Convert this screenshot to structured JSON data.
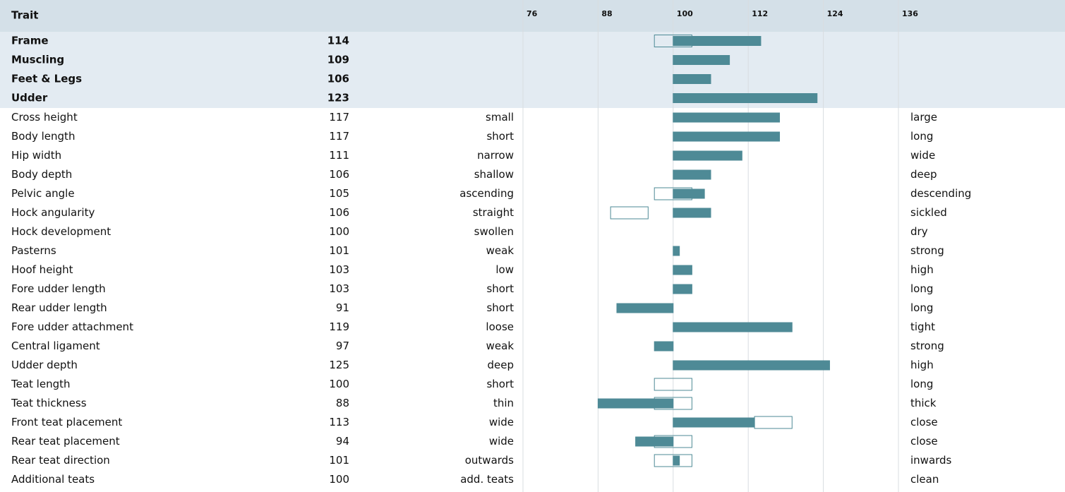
{
  "header": {
    "trait": "Trait"
  },
  "chart_data": {
    "type": "bar",
    "xlim": [
      76,
      136
    ],
    "xticks": [
      76,
      88,
      100,
      112,
      124,
      136
    ],
    "baseline": 100,
    "color": "#4e8a96",
    "grid": true,
    "summary": [
      {
        "name": "Frame",
        "value": 114,
        "optimum": [
          97,
          103
        ]
      },
      {
        "name": "Muscling",
        "value": 109
      },
      {
        "name": "Feet & Legs",
        "value": 106
      },
      {
        "name": "Udder",
        "value": 123
      }
    ],
    "traits": [
      {
        "name": "Cross height",
        "value": 117,
        "low": "small",
        "high": "large"
      },
      {
        "name": "Body length",
        "value": 117,
        "low": "short",
        "high": "long"
      },
      {
        "name": "Hip width",
        "value": 111,
        "low": "narrow",
        "high": "wide"
      },
      {
        "name": "Body depth",
        "value": 106,
        "low": "shallow",
        "high": "deep"
      },
      {
        "name": "Pelvic angle",
        "value": 105,
        "low": "ascending",
        "high": "descending",
        "optimum": [
          97,
          103
        ]
      },
      {
        "name": "Hock angularity",
        "value": 106,
        "low": "straight",
        "high": "sickled",
        "optimum": [
          90,
          96
        ]
      },
      {
        "name": "Hock development",
        "value": 100,
        "low": "swollen",
        "high": "dry"
      },
      {
        "name": "Pasterns",
        "value": 101,
        "low": "weak",
        "high": "strong"
      },
      {
        "name": "Hoof height",
        "value": 103,
        "low": "low",
        "high": "high"
      },
      {
        "name": "Fore udder length",
        "value": 103,
        "low": "short",
        "high": "long"
      },
      {
        "name": "Rear udder length",
        "value": 91,
        "low": "short",
        "high": "long"
      },
      {
        "name": "Fore udder attachment",
        "value": 119,
        "low": "loose",
        "high": "tight"
      },
      {
        "name": "Central ligament",
        "value": 97,
        "low": "weak",
        "high": "strong"
      },
      {
        "name": "Udder depth",
        "value": 125,
        "low": "deep",
        "high": "high"
      },
      {
        "name": "Teat length",
        "value": 100,
        "low": "short",
        "high": "long",
        "optimum": [
          97,
          103
        ]
      },
      {
        "name": "Teat thickness",
        "value": 88,
        "low": "thin",
        "high": "thick",
        "optimum": [
          97,
          103
        ]
      },
      {
        "name": "Front teat placement",
        "value": 113,
        "low": "wide",
        "high": "close",
        "optimum": [
          113,
          119
        ]
      },
      {
        "name": "Rear teat placement",
        "value": 94,
        "low": "wide",
        "high": "close",
        "optimum": [
          97,
          103
        ]
      },
      {
        "name": "Rear teat direction",
        "value": 101,
        "low": "outwards",
        "high": "inwards",
        "optimum": [
          97,
          103
        ]
      },
      {
        "name": "Additional teats",
        "value": 100,
        "low": "add. teats",
        "high": "clean"
      }
    ]
  }
}
